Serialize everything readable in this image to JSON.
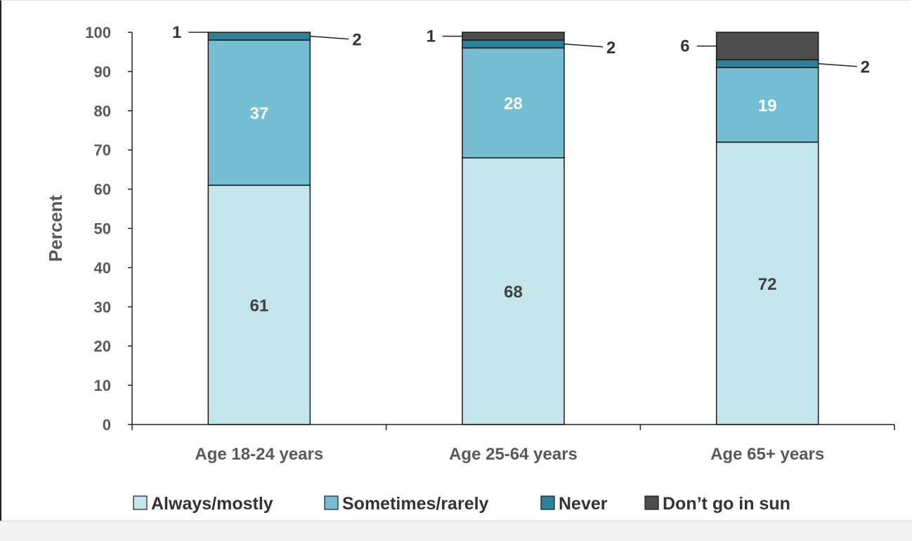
{
  "chart_data": {
    "type": "bar",
    "stacked": true,
    "categories": [
      "Age 18-24 years",
      "Age 25-64 years",
      "Age 65+ years"
    ],
    "series": [
      {
        "name": "Always/mostly",
        "values": [
          61,
          68,
          72
        ],
        "color": "#c5e5ec"
      },
      {
        "name": "Sometimes/rarely",
        "values": [
          37,
          28,
          19
        ],
        "color": "#74bdd3"
      },
      {
        "name": "Never",
        "values": [
          2,
          2,
          2
        ],
        "color": "#2b8299"
      },
      {
        "name": "Don’t go in sun",
        "values": [
          1,
          1,
          6
        ],
        "color": "#4d4d4d"
      }
    ],
    "title": "",
    "xlabel": "",
    "ylabel": "Percent",
    "ylim": [
      0,
      100
    ],
    "yticks": [
      0,
      10,
      20,
      30,
      40,
      50,
      60,
      70,
      80,
      90,
      100
    ],
    "grid": false,
    "legend": "bottom",
    "data_labels": [
      [
        "61",
        "37",
        "2",
        "1"
      ],
      [
        "68",
        "28",
        "2",
        "1"
      ],
      [
        "72",
        "19",
        "2",
        "6"
      ]
    ]
  }
}
